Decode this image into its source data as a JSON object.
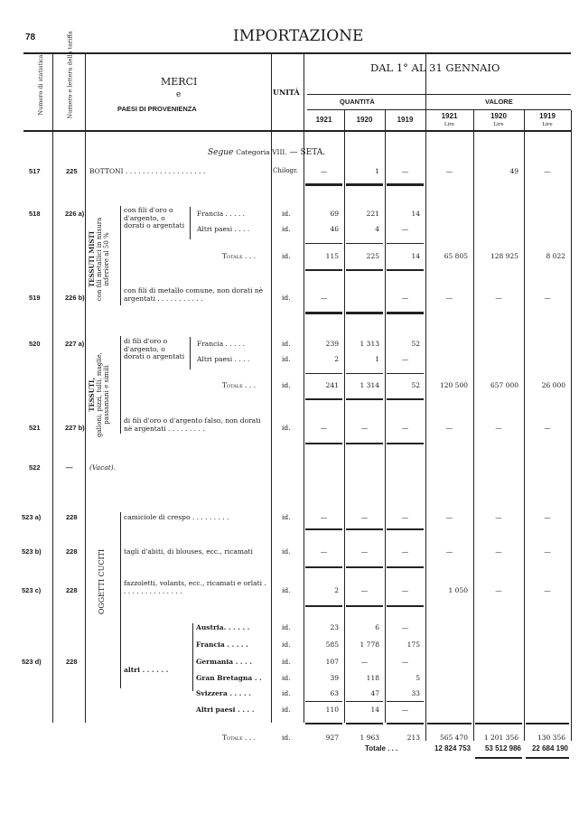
{
  "page_number": "78",
  "title": "IMPORTAZIONE",
  "header": {
    "col_numero": "Numero di statistica",
    "col_tariffa": "Numero e lettera della tariffa",
    "merci_line1": "MERCI",
    "merci_line2": "e",
    "merci_line3": "PAESI DI PROVENIENZA",
    "unita": "UNITÀ",
    "period": "DAL 1° AL 31 GENNAIO",
    "quantita": "QUANTITÀ",
    "valore": "VALORE",
    "years": [
      "1921",
      "1920",
      "1919",
      "1921",
      "1920",
      "1919"
    ],
    "lire": "Lire"
  },
  "section": {
    "prefix": "Segue",
    "category": "Categoria VIII.",
    "name": "— SETA."
  },
  "groups": {
    "tessuti_misti": [
      "TESSUTI MISTI",
      "con fili metallici in misura",
      "inferiore al 50 %"
    ],
    "tessuti": [
      "TESSUTI,",
      "galloni, pizzi, tulli, maglie,",
      "passamani e simili"
    ],
    "oggetti_cuciti": "OGGETTI CUCITI",
    "fili_oro_226": "con fili d'oro o d'argento, o dorati o argentati",
    "fili_oro_227": "di fili d'oro o d'argento, o dorati o argentati",
    "altri": "altri . . . . . ."
  },
  "rows": [
    {
      "num": "517",
      "tariff": "225",
      "desc": "BOTTONI . . . . . . . . . . . . . . . . . . .",
      "unit": "Chilogr.",
      "q": [
        "—",
        "1",
        "—"
      ],
      "v": [
        "—",
        "49",
        "—"
      ]
    },
    {
      "num": "518",
      "tariff": "226 a)",
      "desc": "Francia . . . . .",
      "unit": "id.",
      "q": [
        "69",
        "221",
        "14"
      ],
      "v": [
        "",
        "",
        ""
      ]
    },
    {
      "num": "",
      "tariff": "",
      "desc": "Altri paesi . . . .",
      "unit": "id.",
      "q": [
        "46",
        "4",
        "—"
      ],
      "v": [
        "",
        "",
        ""
      ]
    },
    {
      "num": "",
      "tariff": "",
      "desc": "Totale . . .",
      "unit": "id.",
      "q": [
        "115",
        "225",
        "14"
      ],
      "v": [
        "65 805",
        "128 925",
        "8 022"
      ]
    },
    {
      "num": "519",
      "tariff": "226 b)",
      "desc": "con fili di metallo comune, non dorati nè argentati . . . . . . . . . . .",
      "unit": "id.",
      "q": [
        "—",
        "",
        "—"
      ],
      "v": [
        "—",
        "—",
        "—"
      ]
    },
    {
      "num": "520",
      "tariff": "227 a)",
      "desc": "Francia . . . . .",
      "unit": "id.",
      "q": [
        "239",
        "1 313",
        "52"
      ],
      "v": [
        "",
        "",
        ""
      ]
    },
    {
      "num": "",
      "tariff": "",
      "desc": "Altri paesi . . . .",
      "unit": "id.",
      "q": [
        "2",
        "1",
        "—"
      ],
      "v": [
        "",
        "",
        ""
      ]
    },
    {
      "num": "",
      "tariff": "",
      "desc": "Totale . . .",
      "unit": "id.",
      "q": [
        "241",
        "1 314",
        "52"
      ],
      "v": [
        "120 500",
        "657 000",
        "26 000"
      ]
    },
    {
      "num": "521",
      "tariff": "227 b)",
      "desc": "di fili d'oro o d'argento falso, non dorati nè argentati . . . . . . . . .",
      "unit": "id.",
      "q": [
        "—",
        "—",
        "—"
      ],
      "v": [
        "—",
        "—",
        "—"
      ]
    },
    {
      "num": "522",
      "tariff": "—",
      "desc": "(Vacat).",
      "unit": "",
      "q": [
        "",
        "",
        ""
      ],
      "v": [
        "",
        "",
        ""
      ]
    },
    {
      "num": "523 a)",
      "tariff": "228",
      "desc": "camiciole di crespo . . . . . . . . .",
      "unit": "id.",
      "q": [
        "—",
        "—",
        "—"
      ],
      "v": [
        "—",
        "—",
        "—"
      ]
    },
    {
      "num": "523 b)",
      "tariff": "228",
      "desc": "tagli d'abiti, di blouses, ecc., ricamati",
      "unit": "id.",
      "q": [
        "—",
        "—",
        "—"
      ],
      "v": [
        "—",
        "—",
        "—"
      ]
    },
    {
      "num": "523 c)",
      "tariff": "228",
      "desc": "fazzoletti, volants, ecc., ricamati e orlati . . . . . . . . . . . . . . .",
      "unit": "id.",
      "q": [
        "2",
        "—",
        "—"
      ],
      "v": [
        "1 050",
        "—",
        "—"
      ]
    },
    {
      "num": "",
      "tariff": "",
      "desc": "Austria. . . . . .",
      "unit": "id.",
      "q": [
        "23",
        "6",
        "—"
      ],
      "v": [
        "",
        "",
        ""
      ]
    },
    {
      "num": "",
      "tariff": "",
      "desc": "Francia . . . . .",
      "unit": "id.",
      "q": [
        "585",
        "1 778",
        "175"
      ],
      "v": [
        "",
        "",
        ""
      ]
    },
    {
      "num": "523 d)",
      "tariff": "228",
      "desc": "Germania . . . .",
      "unit": "id.",
      "q": [
        "107",
        "—",
        "—"
      ],
      "v": [
        "",
        "",
        ""
      ]
    },
    {
      "num": "",
      "tariff": "",
      "desc": "Gran Bretagna . .",
      "unit": "id.",
      "q": [
        "39",
        "118",
        "5"
      ],
      "v": [
        "",
        "",
        ""
      ]
    },
    {
      "num": "",
      "tariff": "",
      "desc": "Svizzera . . . . .",
      "unit": "id.",
      "q": [
        "63",
        "47",
        "33"
      ],
      "v": [
        "",
        "",
        ""
      ]
    },
    {
      "num": "",
      "tariff": "",
      "desc": "Altri paesi . . . .",
      "unit": "id.",
      "q": [
        "110",
        "14",
        "—"
      ],
      "v": [
        "",
        "",
        ""
      ]
    },
    {
      "num": "",
      "tariff": "",
      "desc": "Totale . . .",
      "unit": "id.",
      "q": [
        "927",
        "1 963",
        "213"
      ],
      "v": [
        "565 470",
        "1 201 356",
        "130 356"
      ]
    }
  ],
  "grand_total": {
    "label": "Totale . . .",
    "values": [
      "12 824 753",
      "53 512 986",
      "22 684 190"
    ]
  }
}
